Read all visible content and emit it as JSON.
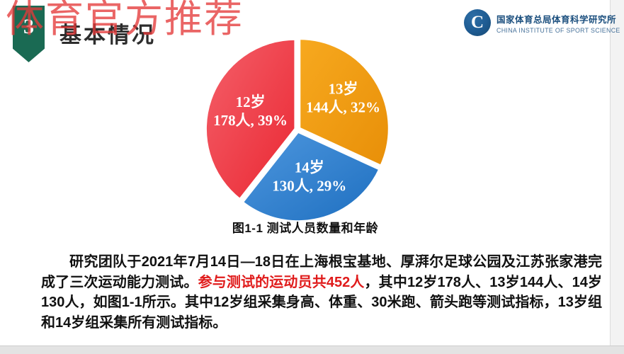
{
  "watermark": {
    "text": "体育官方推荐",
    "color": "#e43a3a"
  },
  "header": {
    "section_number": "3",
    "title": "基本情况",
    "pennant_color": "#1a6a53"
  },
  "logo": {
    "icon": "C",
    "name_cn": "国家体育总局体育科学研究所",
    "name_en": "CHINA INSTITUTE OF SPORT SCIENCE",
    "brand_color": "#1e5b92"
  },
  "chart_data": {
    "type": "pie",
    "title": "图1-1 测试人员数量和年龄",
    "unit": "人",
    "categories": [
      "13岁",
      "14岁",
      "12岁"
    ],
    "values": [
      144,
      130,
      178
    ],
    "percents": [
      32,
      29,
      39
    ],
    "label_format": "{category} / {value}人, {percent}%",
    "start_angle_deg": 0,
    "direction": "clockwise",
    "legend": "none",
    "slice_colors": [
      {
        "light": "#f7a91f",
        "dark": "#e88f08"
      },
      {
        "light": "#4e97de",
        "dark": "#1e6fc0"
      },
      {
        "light": "#f4606a",
        "dark": "#ea2732"
      }
    ]
  },
  "body": {
    "part1": "研究团队于2021年7月14日—18日在上海根宝基地、厚湃尔足球公园及江苏张家港完成了三次运动能力测试。",
    "highlight": "参与测试的运动员共452人",
    "part2": "，其中12岁178人、13岁144人、14岁130人，如图1-1所示。其中12岁组采集身高、体重、30米跑、箭头跑等测试指标，13岁组和14岁组采集所有测试指标。",
    "highlight_color": "#e01b1b"
  }
}
